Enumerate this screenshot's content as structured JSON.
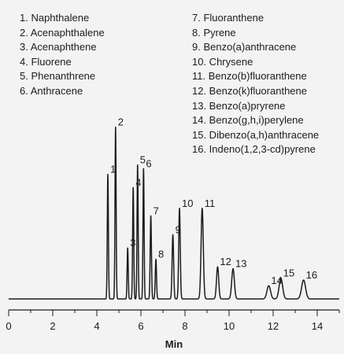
{
  "chart_data": {
    "type": "line",
    "xlabel": "Min",
    "xlim": [
      0,
      15
    ],
    "x_ticks": [
      "0",
      "2",
      "4",
      "6",
      "8",
      "10",
      "12",
      "14"
    ],
    "legend": [
      "1. Naphthalene",
      "2. Acenaphthalene",
      "3. Acenaphthene",
      "4. Fluorene",
      "5. Phenanthrene",
      "6. Anthracene",
      "7. Fluoranthene",
      "8. Pyrene",
      "9. Benzo(a)anthracene",
      "10. Chrysene",
      "11. Benzo(b)fluoranthene",
      "12. Benzo(k)fluoranthene",
      "13. Benzo(a)pryrene",
      "14. Benzo(g,h,i)perylene",
      "15. Dibenzo(a,h)anthracene",
      "16. Indeno(1,2,3-cd)pyrene"
    ],
    "peaks": [
      {
        "label": "1",
        "time": 4.5,
        "height": 0.66,
        "width": 0.025
      },
      {
        "label": "2",
        "time": 4.85,
        "height": 0.91,
        "width": 0.025
      },
      {
        "label": "3",
        "time": 5.4,
        "height": 0.27,
        "width": 0.025
      },
      {
        "label": "4",
        "time": 5.65,
        "height": 0.59,
        "width": 0.025
      },
      {
        "label": "5",
        "time": 5.85,
        "height": 0.71,
        "width": 0.025
      },
      {
        "label": "6",
        "time": 6.12,
        "height": 0.69,
        "width": 0.025
      },
      {
        "label": "7",
        "time": 6.45,
        "height": 0.44,
        "width": 0.028
      },
      {
        "label": "8",
        "time": 6.68,
        "height": 0.21,
        "width": 0.028
      },
      {
        "label": "9",
        "time": 7.45,
        "height": 0.34,
        "width": 0.035
      },
      {
        "label": "10",
        "time": 7.75,
        "height": 0.48,
        "width": 0.035
      },
      {
        "label": "11",
        "time": 8.78,
        "height": 0.48,
        "width": 0.05
      },
      {
        "label": "12",
        "time": 9.48,
        "height": 0.17,
        "width": 0.05
      },
      {
        "label": "13",
        "time": 10.18,
        "height": 0.16,
        "width": 0.06
      },
      {
        "label": "14",
        "time": 11.8,
        "height": 0.07,
        "width": 0.08
      },
      {
        "label": "15",
        "time": 12.35,
        "height": 0.11,
        "width": 0.08
      },
      {
        "label": "16",
        "time": 13.38,
        "height": 0.1,
        "width": 0.09
      }
    ]
  }
}
